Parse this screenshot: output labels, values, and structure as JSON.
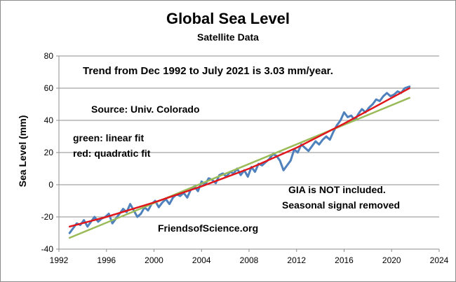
{
  "chart_data": {
    "type": "line",
    "title": "Global Sea Level",
    "subtitle": "Satellite Data",
    "xlabel": "",
    "ylabel": "Sea Level (mm)",
    "xlim": [
      1992,
      2024
    ],
    "ylim": [
      -40,
      80
    ],
    "xticks": [
      1992,
      1996,
      2000,
      2004,
      2008,
      2012,
      2016,
      2020,
      2024
    ],
    "yticks": [
      -40,
      -20,
      0,
      20,
      40,
      60,
      80
    ],
    "grid": "horizontal",
    "annotations": {
      "trend": "Trend from Dec 1992 to July 2021 is 3.03 mm/year.",
      "source": "Source: Univ. Colorado",
      "green_label": "green: linear fit",
      "red_label": "red: quadratic fit",
      "gia": "GIA is NOT included.",
      "seasonal": "Seasonal signal removed",
      "website": "FriendsofScience.org"
    },
    "series": [
      {
        "color": "#4f81bd",
        "x": [
          1992.9,
          1993.2,
          1993.5,
          1993.8,
          1994.1,
          1994.4,
          1994.7,
          1995.0,
          1995.3,
          1995.6,
          1995.9,
          1996.2,
          1996.5,
          1996.8,
          1997.1,
          1997.4,
          1997.7,
          1998.0,
          1998.3,
          1998.6,
          1998.9,
          1999.2,
          1999.5,
          1999.8,
          2000.1,
          2000.4,
          2000.7,
          2001.0,
          2001.3,
          2001.6,
          2001.9,
          2002.2,
          2002.5,
          2002.8,
          2003.1,
          2003.4,
          2003.7,
          2004.0,
          2004.3,
          2004.6,
          2004.9,
          2005.2,
          2005.5,
          2005.8,
          2006.1,
          2006.4,
          2006.7,
          2007.0,
          2007.3,
          2007.6,
          2007.9,
          2008.2,
          2008.5,
          2008.8,
          2009.1,
          2009.4,
          2009.7,
          2010.0,
          2010.3,
          2010.6,
          2010.9,
          2011.2,
          2011.5,
          2011.8,
          2012.1,
          2012.4,
          2012.7,
          2013.0,
          2013.3,
          2013.6,
          2013.9,
          2014.2,
          2014.5,
          2014.8,
          2015.1,
          2015.4,
          2015.7,
          2016.0,
          2016.3,
          2016.6,
          2016.9,
          2017.2,
          2017.5,
          2017.8,
          2018.1,
          2018.4,
          2018.7,
          2019.0,
          2019.3,
          2019.6,
          2019.9,
          2020.2,
          2020.5,
          2020.8,
          2021.1,
          2021.5
        ],
        "y": [
          -30,
          -27,
          -24,
          -25,
          -22,
          -26,
          -23,
          -20,
          -23,
          -21,
          -20,
          -18,
          -24,
          -21,
          -18,
          -15,
          -17,
          -12,
          -16,
          -20,
          -18,
          -14,
          -16,
          -12,
          -10,
          -14,
          -11,
          -9,
          -12,
          -8,
          -6,
          -7,
          -5,
          -8,
          -3,
          -1,
          -4,
          2,
          0,
          4,
          3,
          1,
          6,
          7,
          5,
          8,
          7,
          10,
          6,
          9,
          5,
          11,
          8,
          13,
          12,
          14,
          16,
          19,
          18,
          15,
          9,
          12,
          15,
          22,
          20,
          25,
          23,
          21,
          24,
          27,
          25,
          28,
          30,
          28,
          33,
          37,
          40,
          45,
          42,
          43,
          40,
          44,
          47,
          45,
          48,
          50,
          53,
          52,
          55,
          57,
          55,
          56,
          58,
          57,
          60,
          61
        ]
      },
      {
        "label": "green: linear fit",
        "color": "#9bbb59",
        "x": [
          1992.9,
          2021.5
        ],
        "y": [
          -33,
          54
        ]
      },
      {
        "label": "red: quadratic fit",
        "color": "#e0161b",
        "x": [
          1992.9,
          1996,
          2000,
          2004,
          2008,
          2012,
          2016,
          2020,
          2021.5
        ],
        "y": [
          -26,
          -20,
          -11,
          -1,
          10,
          23,
          38,
          54,
          60
        ]
      }
    ]
  }
}
